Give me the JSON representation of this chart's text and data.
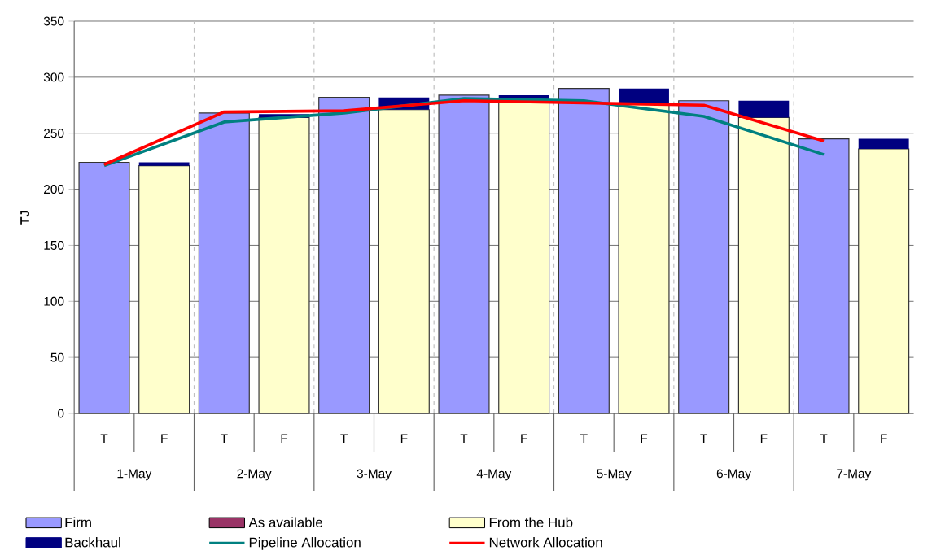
{
  "chart_data": {
    "type": "bar",
    "stacked": true,
    "ylabel": "TJ",
    "categories": [
      "T",
      "F",
      "T",
      "F",
      "T",
      "F",
      "T",
      "F",
      "T",
      "F",
      "T",
      "F",
      "T",
      "F"
    ],
    "ylim": [
      0,
      350
    ],
    "yticks": [
      0,
      50,
      100,
      150,
      200,
      250,
      300,
      350
    ],
    "grid": true,
    "legend": "bottom",
    "annotations": [
      "1-May",
      "2-May",
      "3-May",
      "4-May",
      "5-May",
      "6-May",
      "7-May"
    ],
    "series": [
      {
        "name": "Firm",
        "color": "#9999ff",
        "values": [
          224,
          null,
          268,
          null,
          282,
          null,
          284,
          null,
          290,
          null,
          279,
          null,
          245,
          null
        ]
      },
      {
        "name": "As available",
        "color": "#993366",
        "values": [
          null,
          null,
          null,
          null,
          null,
          null,
          null,
          null,
          null,
          null,
          null,
          null,
          null,
          null
        ]
      },
      {
        "name": "From the Hub",
        "color": "#ffffcc",
        "values": [
          null,
          221,
          null,
          264,
          null,
          271,
          null,
          278,
          null,
          277,
          null,
          264,
          null,
          236
        ]
      },
      {
        "name": "Backhaul",
        "color": "#000080",
        "values": [
          null,
          3,
          null,
          3,
          null,
          11,
          null,
          6,
          null,
          13,
          null,
          15,
          null,
          9
        ]
      },
      {
        "name": "Pipeline Allocation",
        "type": "line",
        "color": "#008080",
        "values": [
          221,
          null,
          260,
          null,
          268,
          null,
          281,
          null,
          279,
          null,
          265,
          null,
          231,
          null
        ]
      },
      {
        "name": "Network Allocation",
        "type": "line",
        "color": "#ff0000",
        "values": [
          222,
          null,
          269,
          null,
          270,
          null,
          279,
          null,
          277,
          null,
          275,
          null,
          243,
          null
        ]
      }
    ]
  }
}
